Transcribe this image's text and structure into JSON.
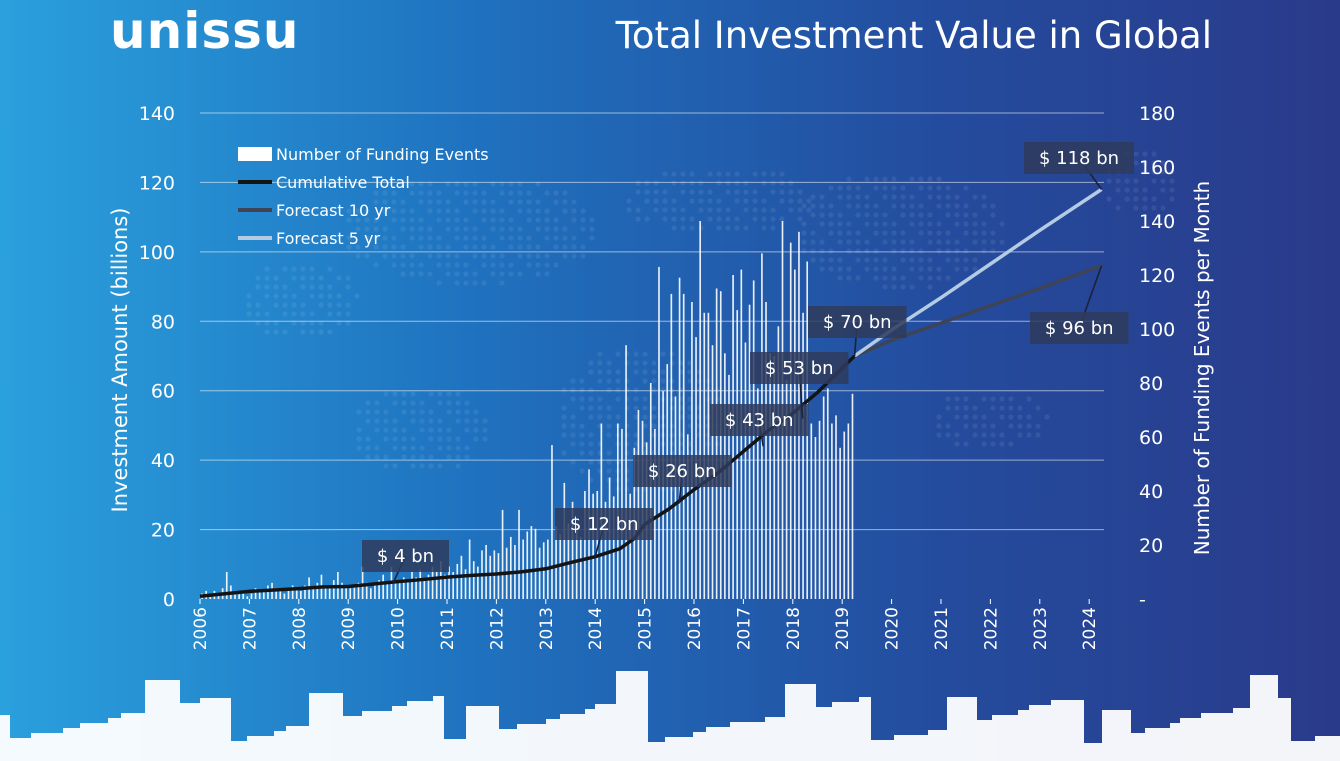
{
  "brand": {
    "logo_text": "unissu"
  },
  "colors": {
    "background_left": "#2aa0dd",
    "background_right": "#2a3a8a",
    "bars": "#ffffff",
    "cumulative": "#141414",
    "forecast10": "#3e4356",
    "forecast5": "#b4cbe4",
    "label_box": "#2f3b5c"
  },
  "chart_data": {
    "type": "bar+line",
    "title": "Total Investment Value in Global",
    "ylabel": "Investment Amount (billions)",
    "y2label": "Number of Funding Events per Month",
    "ylim": [
      0,
      140
    ],
    "y2lim": [
      0,
      180
    ],
    "yticks": [
      "0",
      "20",
      "40",
      "60",
      "80",
      "100",
      "120",
      "140"
    ],
    "y2ticks": [
      "-",
      "20",
      "40",
      "60",
      "80",
      "100",
      "120",
      "140",
      "160",
      "180"
    ],
    "xlim": [
      2006,
      2024.3
    ],
    "xticks": [
      "2006",
      "2007",
      "2008",
      "2009",
      "2010",
      "2011",
      "2012",
      "2013",
      "2014",
      "2015",
      "2016",
      "2017",
      "2018",
      "2019",
      "2020",
      "2021",
      "2022",
      "2023",
      "2024"
    ],
    "grid": true,
    "legend": {
      "position": "top-left",
      "entries": [
        {
          "label": "Number of Funding Events",
          "symbol": "bar"
        },
        {
          "label": "Cumulative Total",
          "symbol": "line",
          "color": "#141414"
        },
        {
          "label": "Forecast 10 yr",
          "symbol": "line",
          "color": "#3e4356"
        },
        {
          "label": "Forecast 5 yr",
          "symbol": "line",
          "color": "#b4cbe4"
        }
      ]
    },
    "funding_events_monthly": {
      "start": "2006-01",
      "values": [
        2,
        3,
        1,
        3,
        2,
        4,
        10,
        5,
        3,
        2,
        3,
        1,
        2,
        4,
        3,
        3,
        5,
        6,
        4,
        3,
        2,
        3,
        5,
        4,
        3,
        5,
        8,
        4,
        6,
        9,
        5,
        4,
        7,
        10,
        6,
        5,
        4,
        5,
        6,
        12,
        6,
        4,
        5,
        7,
        9,
        6,
        12,
        7,
        6,
        8,
        7,
        10,
        8,
        11,
        7,
        9,
        12,
        10,
        14,
        9,
        12,
        10,
        13,
        16,
        11,
        22,
        14,
        12,
        18,
        20,
        16,
        18,
        17,
        33,
        19,
        23,
        20,
        33,
        22,
        25,
        27,
        26,
        19,
        21,
        22,
        57,
        27,
        24,
        43,
        28,
        36,
        27,
        23,
        40,
        48,
        39,
        40,
        65,
        36,
        45,
        38,
        65,
        63,
        94,
        39,
        56,
        70,
        66,
        58,
        80,
        63,
        123,
        77,
        87,
        113,
        75,
        119,
        113,
        61,
        110,
        97,
        140,
        106,
        106,
        94,
        115,
        114,
        91,
        83,
        120,
        107,
        122,
        95,
        109,
        118,
        78,
        128,
        110,
        91,
        90,
        101,
        140,
        81,
        132,
        122,
        136,
        106,
        125,
        65,
        60,
        66,
        75,
        78,
        65,
        68,
        56,
        62,
        65,
        76
      ]
    },
    "series": [
      {
        "name": "Cumulative Total",
        "x": [
          2006.0,
          2006.5,
          2007.0,
          2007.5,
          2008.0,
          2008.5,
          2009.0,
          2009.5,
          2010.0,
          2010.5,
          2011.0,
          2011.5,
          2012.0,
          2012.5,
          2013.0,
          2013.5,
          2014.0,
          2014.5,
          2014.8,
          2015.0,
          2015.5,
          2016.0,
          2016.5,
          2017.0,
          2017.5,
          2018.0,
          2018.5,
          2019.0,
          2019.25
        ],
        "y": [
          0.8,
          1.5,
          2.2,
          2.6,
          3.0,
          3.5,
          3.6,
          4.3,
          5.0,
          5.6,
          6.3,
          6.8,
          7.2,
          7.8,
          8.7,
          10.5,
          12.2,
          14.5,
          17.5,
          21.5,
          26.0,
          31.5,
          36.5,
          42.5,
          48.5,
          53.5,
          59.5,
          66.5,
          70
        ]
      },
      {
        "name": "Forecast 10 yr",
        "x": [
          2019.25,
          2020.0,
          2021.0,
          2022.0,
          2023.0,
          2024.25
        ],
        "y": [
          70,
          74.5,
          79.5,
          84.5,
          89.5,
          96
        ]
      },
      {
        "name": "Forecast 5 yr",
        "x": [
          2019.25,
          2020.0,
          2021.0,
          2022.0,
          2023.0,
          2024.25
        ],
        "y": [
          70,
          77.5,
          86.8,
          96.5,
          106.2,
          118
        ]
      }
    ],
    "annotations": [
      {
        "text": "$ 4 bn",
        "x": 2009.9,
        "y": 4.3
      },
      {
        "text": "$ 12 bn",
        "x": 2014.0,
        "y": 12.2
      },
      {
        "text": "$ 26 bn",
        "x": 2015.7,
        "y": 27.5
      },
      {
        "text": "$ 43 bn",
        "x": 2017.4,
        "y": 44
      },
      {
        "text": "$ 53 bn",
        "x": 2018.2,
        "y": 52
      },
      {
        "text": "$ 70 bn",
        "x": 2019.25,
        "y": 70
      },
      {
        "text": "$ 96 bn",
        "x": 2024.25,
        "y": 96
      },
      {
        "text": "$ 118 bn",
        "x": 2024.25,
        "y": 118
      }
    ]
  }
}
